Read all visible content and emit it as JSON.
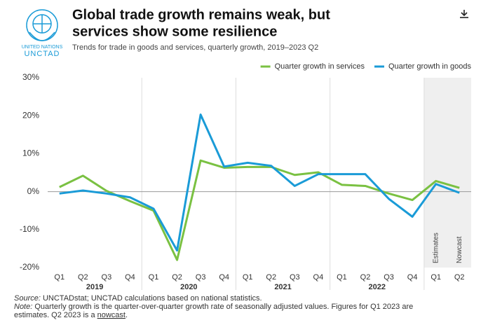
{
  "header": {
    "logo_top": "UNITED NATIONS",
    "logo_bottom": "UNCTAD"
  },
  "chart_data": {
    "type": "line",
    "title_lines": [
      "Global trade growth remains weak, but",
      "services show some resilience"
    ],
    "subtitle": "Trends for trade in goods and services, quarterly growth, 2019–2023 Q2",
    "categories": [
      "Q1",
      "Q2",
      "Q3",
      "Q4",
      "Q1",
      "Q2",
      "Q3",
      "Q4",
      "Q1",
      "Q2",
      "Q3",
      "Q4",
      "Q1",
      "Q2",
      "Q3",
      "Q4",
      "Q1",
      "Q2"
    ],
    "year_labels": [
      "2019",
      "2020",
      "2021",
      "2022"
    ],
    "shade_labels": [
      "Estimates",
      "Nowcast"
    ],
    "series": [
      {
        "name": "Quarter growth in services",
        "color": "#7ac142",
        "values": [
          1.2,
          4.2,
          0.2,
          -2.5,
          -5.0,
          -18.0,
          8.2,
          6.3,
          6.5,
          6.5,
          4.4,
          5.1,
          1.8,
          1.5,
          -0.5,
          -2.2,
          2.8,
          1.0
        ]
      },
      {
        "name": "Quarter growth in goods",
        "color": "#1a9bd7",
        "values": [
          -0.5,
          0.3,
          -0.5,
          -1.5,
          -4.5,
          -15.5,
          20.3,
          6.6,
          7.6,
          6.8,
          1.5,
          4.6,
          4.6,
          4.6,
          -1.9,
          -6.6,
          2.0,
          -0.3
        ]
      }
    ],
    "ylim": [
      -20,
      30
    ],
    "yticks": [
      {
        "value": -20,
        "label": "-20%"
      },
      {
        "value": -10,
        "label": "-10%"
      },
      {
        "value": 0,
        "label": "0%"
      },
      {
        "value": 10,
        "label": "10%"
      },
      {
        "value": 20,
        "label": "20%"
      },
      {
        "value": 30,
        "label": "30%"
      }
    ],
    "grid": false,
    "legend": "top-right",
    "source_label": "Source:",
    "source": " UNCTADstat; UNCTAD calculations based on national statistics.",
    "note_label": "Note:",
    "note_lines": [
      " Quarterly growth is the quarter-over-quarter growth rate of seasonally adjusted values. Figures for Q1 2023 are",
      "estimates. Q2 2023 is a "
    ],
    "note_link": "nowcast",
    "note_end": "."
  }
}
